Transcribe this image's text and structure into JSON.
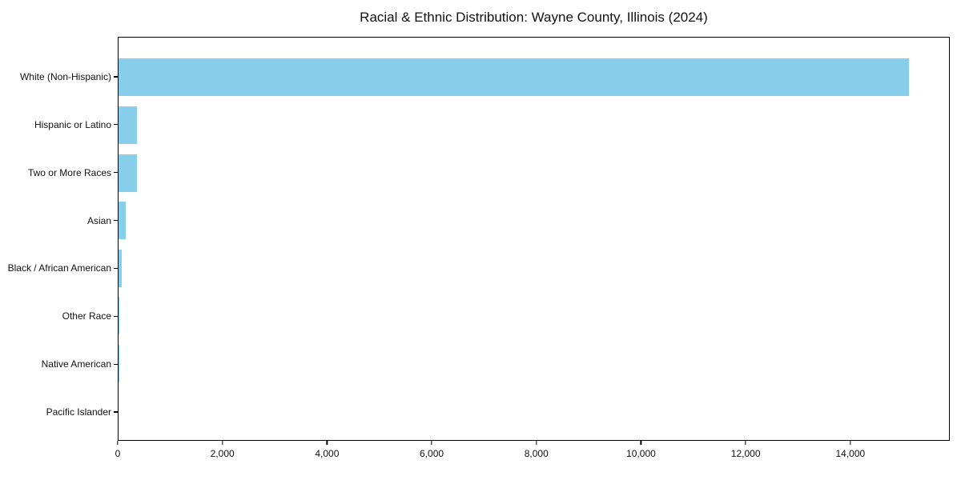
{
  "chart_data": {
    "type": "bar",
    "orientation": "horizontal",
    "title": "Racial & Ethnic Distribution: Wayne County, Illinois (2024)",
    "categories": [
      "White (Non-Hispanic)",
      "Hispanic or Latino",
      "Two or More Races",
      "Asian",
      "Black / African American",
      "Other Race",
      "Native American",
      "Pacific Islander"
    ],
    "values": [
      15140,
      360,
      355,
      135,
      60,
      5,
      3,
      1
    ],
    "xlabel": "",
    "ylabel": "",
    "xlim": [
      0,
      15900
    ],
    "xticks": [
      0,
      2000,
      4000,
      6000,
      8000,
      10000,
      12000,
      14000
    ],
    "xtick_labels": [
      "0",
      "2,000",
      "4,000",
      "6,000",
      "8,000",
      "10,000",
      "12,000",
      "14,000"
    ],
    "bar_color": "#87CEEB",
    "grid": false,
    "legend_position": "none",
    "background_color": "#ffffff"
  }
}
